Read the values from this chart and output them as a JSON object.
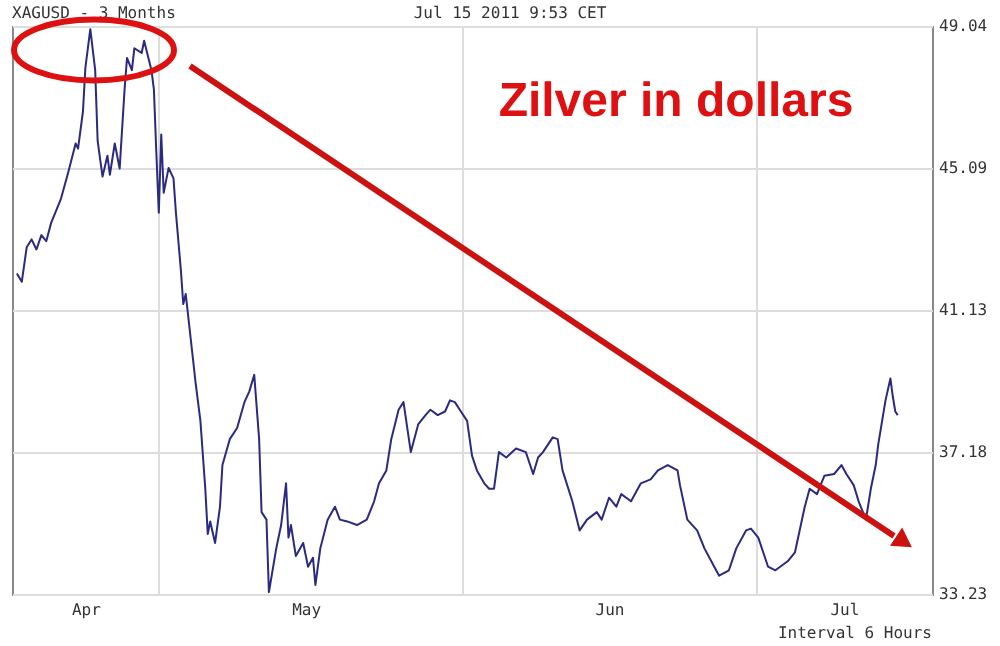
{
  "chart_data": {
    "type": "line",
    "title": "Zilver in dollars",
    "annotations": [
      "XAGUSD - 3 Months",
      "Jul 15 2011 9:53 CET",
      "Interval 6 Hours"
    ],
    "x": [
      "2011-04-16T12:00",
      "2011-04-17T00:00",
      "2011-04-17T12:00",
      "2011-04-18T00:00",
      "2011-04-18T12:00",
      "2011-04-19T00:00",
      "2011-04-19T12:00",
      "2011-04-20T00:00",
      "2011-04-21T00:00",
      "2011-04-21T18:00",
      "2011-04-22T12:00",
      "2011-04-22T18:00",
      "2011-04-23T06:00",
      "2011-04-23T12:00",
      "2011-04-24T00:00",
      "2011-04-24T12:00",
      "2011-04-24T18:00",
      "2011-04-25T06:00",
      "2011-04-25T18:00",
      "2011-04-26T00:00",
      "2011-04-26T12:00",
      "2011-04-27T00:00",
      "2011-04-27T12:00",
      "2011-04-27T18:00",
      "2011-04-28T06:00",
      "2011-04-28T12:00",
      "2011-04-29T06:00",
      "2011-04-29T12:00",
      "2011-04-30T06:00",
      "2011-04-30T12:00",
      "2011-04-30T18:00",
      "2011-05-01T00:00",
      "2011-05-01T06:00",
      "2011-05-01T12:00",
      "2011-05-02T00:00",
      "2011-05-02T12:00",
      "2011-05-02T18:00",
      "2011-05-03T06:00",
      "2011-05-03T12:00",
      "2011-05-03T18:00",
      "2011-05-04T12:00",
      "2011-05-04T18:00",
      "2011-05-05T06:00",
      "2011-05-05T18:00",
      "2011-05-06T00:00",
      "2011-05-06T06:00",
      "2011-05-06T18:00",
      "2011-05-07T06:00",
      "2011-05-07T12:00",
      "2011-05-08T06:00",
      "2011-05-09T00:00",
      "2011-05-09T18:00",
      "2011-05-10T06:00",
      "2011-05-10T18:00",
      "2011-05-11T06:00",
      "2011-05-11T12:00",
      "2011-05-12T00:00",
      "2011-05-12T06:00",
      "2011-05-13T00:00",
      "2011-05-13T12:00",
      "2011-05-14T00:00",
      "2011-05-14T06:00",
      "2011-05-14T12:00",
      "2011-05-15T00:00",
      "2011-05-15T18:00",
      "2011-05-16T06:00",
      "2011-05-16T18:00",
      "2011-05-17T00:00",
      "2011-05-17T12:00",
      "2011-05-18T06:00",
      "2011-05-19T00:00",
      "2011-05-19T12:00",
      "2011-05-20T06:00",
      "2011-05-21T06:00",
      "2011-05-22T06:00",
      "2011-05-23T00:00",
      "2011-05-23T12:00",
      "2011-05-24T06:00",
      "2011-05-24T18:00",
      "2011-05-25T12:00",
      "2011-05-26T00:00",
      "2011-05-26T18:00",
      "2011-05-27T12:00",
      "2011-05-28T06:00",
      "2011-05-28T18:00",
      "2011-05-29T12:00",
      "2011-05-30T06:00",
      "2011-05-30T18:00",
      "2011-05-31T06:00",
      "2011-05-31T18:00",
      "2011-06-01T12:00",
      "2011-06-02T00:00",
      "2011-06-02T12:00",
      "2011-06-03T06:00",
      "2011-06-03T18:00",
      "2011-06-04T06:00",
      "2011-06-04T18:00",
      "2011-06-05T12:00",
      "2011-06-06T12:00",
      "2011-06-07T12:00",
      "2011-06-08T06:00",
      "2011-06-08T18:00",
      "2011-06-09T06:00",
      "2011-06-10T06:00",
      "2011-06-10T18:00",
      "2011-06-11T06:00",
      "2011-06-12T06:00",
      "2011-06-13T00:00",
      "2011-06-13T18:00",
      "2011-06-14T18:00",
      "2011-06-15T06:00",
      "2011-06-16T00:00",
      "2011-06-16T18:00",
      "2011-06-17T06:00",
      "2011-06-18T06:00",
      "2011-06-19T06:00",
      "2011-06-20T06:00",
      "2011-06-21T00:00",
      "2011-06-22T00:00",
      "2011-06-23T00:00",
      "2011-06-23T06:00",
      "2011-06-24T00:00",
      "2011-06-25T00:00",
      "2011-06-25T18:00",
      "2011-06-26T18:00",
      "2011-06-27T06:00",
      "2011-06-28T06:00",
      "2011-06-29T00:00",
      "2011-06-30T00:00",
      "2011-06-30T12:00",
      "2011-07-01T06:00",
      "2011-07-02T06:00",
      "2011-07-03T00:00",
      "2011-07-04T06:00",
      "2011-07-05T00:00",
      "2011-07-06T00:00",
      "2011-07-06T12:00",
      "2011-07-07T06:00",
      "2011-07-08T00:00",
      "2011-07-09T00:00",
      "2011-07-09T18:00",
      "2011-07-10T06:00",
      "2011-07-11T00:00",
      "2011-07-11T12:00",
      "2011-07-12T06:00",
      "2011-07-12T18:00",
      "2011-07-13T06:00",
      "2011-07-13T12:00",
      "2011-07-14T00:00",
      "2011-07-14T06:00",
      "2011-07-14T18:00",
      "2011-07-15T00:00",
      "2011-07-15T06:00",
      "2011-07-15T12:00"
    ],
    "values": [
      42.15,
      41.92,
      42.88,
      43.1,
      42.82,
      43.22,
      43.05,
      43.56,
      44.23,
      44.97,
      45.77,
      45.63,
      46.66,
      47.88,
      48.95,
      47.81,
      45.84,
      44.85,
      45.43,
      44.9,
      45.77,
      45.07,
      47.27,
      48.15,
      47.81,
      48.42,
      48.29,
      48.63,
      47.81,
      47.27,
      45.49,
      43.84,
      46.02,
      44.4,
      45.09,
      44.8,
      43.84,
      42.26,
      41.3,
      41.58,
      39.75,
      39.13,
      38.05,
      36.16,
      34.9,
      35.25,
      34.65,
      35.66,
      36.82,
      37.54,
      37.85,
      38.57,
      38.87,
      39.33,
      37.54,
      35.51,
      35.3,
      33.28,
      34.5,
      35.15,
      36.31,
      34.8,
      35.15,
      34.29,
      34.65,
      33.99,
      34.24,
      33.48,
      34.5,
      35.3,
      35.66,
      35.3,
      35.25,
      35.15,
      35.3,
      35.81,
      36.31,
      36.67,
      37.54,
      38.36,
      38.57,
      37.18,
      37.95,
      38.21,
      38.36,
      38.21,
      38.31,
      38.62,
      38.57,
      38.36,
      38.05,
      37.08,
      36.67,
      36.31,
      36.16,
      36.16,
      37.18,
      37.03,
      37.28,
      37.18,
      36.57,
      37.03,
      37.18,
      37.59,
      37.54,
      36.67,
      35.81,
      35.0,
      35.3,
      35.51,
      35.3,
      35.91,
      35.66,
      36.01,
      35.81,
      36.31,
      36.42,
      36.67,
      36.82,
      36.67,
      36.26,
      35.3,
      35.0,
      34.5,
      33.99,
      33.74,
      33.89,
      34.5,
      35.0,
      35.05,
      34.8,
      33.99,
      33.89,
      34.14,
      34.39,
      35.66,
      36.16,
      36.01,
      36.52,
      36.57,
      36.82,
      36.57,
      36.26,
      35.81,
      35.3,
      36.16,
      36.82,
      37.38,
      38.21,
      38.62,
      39.23,
      38.72,
      38.31,
      38.21
    ],
    "color": "#2a2a80",
    "xlim": [
      "2011-04-16T00:00",
      "2011-07-19T00:00"
    ],
    "xticks": [
      {
        "value": "2011-04-23T12:00",
        "label": "Apr"
      },
      {
        "value": "2011-05-01T00:00",
        "label": null
      },
      {
        "value": "2011-05-16T00:00",
        "label": "May"
      },
      {
        "value": "2011-06-01T00:00",
        "label": null
      },
      {
        "value": "2011-06-16T00:00",
        "label": "Jun"
      },
      {
        "value": "2011-07-01T00:00",
        "label": null
      },
      {
        "value": "2011-07-10T00:00",
        "label": "Jul"
      }
    ],
    "ylim": [
      33.23,
      49.04
    ],
    "yticks": [
      33.23,
      37.18,
      41.13,
      45.09,
      49.04
    ],
    "grid": true
  }
}
